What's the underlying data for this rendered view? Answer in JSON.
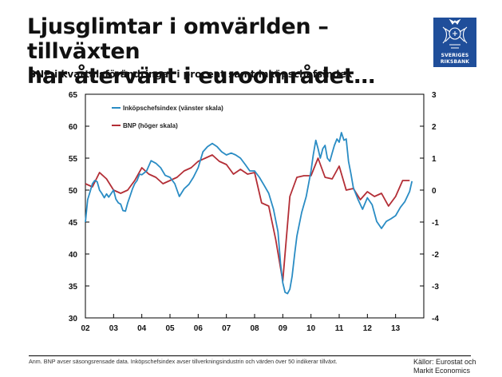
{
  "header": {
    "title_line1": "Ljusglimtar i omvärlden – tillväxten",
    "title_line2": "har återvänt i euroområdet…",
    "subtitle": "BNP i kvartalsförändringar i procent samt inköpschefsindex"
  },
  "logo": {
    "icon": "riksbank-crest-icon",
    "line1": "SVERIGES",
    "line2": "RIKSBANK",
    "color": "#1f4e9a"
  },
  "footer": {
    "note": "Anm. BNP avser säsongsrensade data. Inköpschefsindex avser tillverkningsindustrin och värden över 50 indikerar tillväxt.",
    "source_line1": "Källor: Eurostat och",
    "source_line2": "Markit Economics"
  },
  "chart_data": {
    "type": "line",
    "xlabel": "",
    "ylabel": "",
    "x_ticks": [
      "02",
      "03",
      "04",
      "05",
      "06",
      "07",
      "08",
      "09",
      "10",
      "11",
      "12",
      "13"
    ],
    "x_range": [
      2002.0,
      2014.0
    ],
    "y_left": {
      "min": 30,
      "max": 65,
      "ticks": [
        30,
        35,
        40,
        45,
        50,
        55,
        60,
        65
      ]
    },
    "y_right": {
      "min": -4,
      "max": 3,
      "ticks": [
        -4,
        -3,
        -2,
        -1,
        0,
        1,
        2,
        3
      ]
    },
    "grid": false,
    "legend_position": "top-left",
    "series": [
      {
        "name": "Inköpschefsindex (vänster skala)",
        "axis": "left",
        "color": "#2a8cc4",
        "x": [
          2002.0,
          2002.08,
          2002.17,
          2002.25,
          2002.33,
          2002.42,
          2002.5,
          2002.58,
          2002.67,
          2002.75,
          2002.83,
          2002.92,
          2003.0,
          2003.08,
          2003.17,
          2003.25,
          2003.33,
          2003.42,
          2003.5,
          2003.58,
          2003.67,
          2003.75,
          2003.83,
          2003.92,
          2004.0,
          2004.17,
          2004.33,
          2004.5,
          2004.67,
          2004.83,
          2005.0,
          2005.17,
          2005.33,
          2005.5,
          2005.67,
          2005.83,
          2006.0,
          2006.17,
          2006.33,
          2006.5,
          2006.67,
          2006.83,
          2007.0,
          2007.17,
          2007.33,
          2007.5,
          2007.67,
          2007.83,
          2008.0,
          2008.17,
          2008.33,
          2008.5,
          2008.67,
          2008.83,
          2008.92,
          2009.0,
          2009.08,
          2009.17,
          2009.25,
          2009.33,
          2009.42,
          2009.5,
          2009.67,
          2009.83,
          2010.0,
          2010.08,
          2010.17,
          2010.25,
          2010.33,
          2010.42,
          2010.5,
          2010.58,
          2010.67,
          2010.75,
          2010.83,
          2010.92,
          2011.0,
          2011.08,
          2011.17,
          2011.25,
          2011.33,
          2011.42,
          2011.5,
          2011.67,
          2011.83,
          2012.0,
          2012.17,
          2012.33,
          2012.5,
          2012.67,
          2012.83,
          2013.0,
          2013.17,
          2013.33,
          2013.5,
          2013.58
        ],
        "values": [
          45.0,
          48.5,
          49.8,
          51.0,
          51.5,
          51.3,
          50.0,
          49.5,
          48.8,
          49.4,
          48.9,
          49.5,
          50.0,
          48.6,
          48.0,
          47.8,
          46.8,
          46.7,
          48.0,
          49.0,
          50.2,
          51.0,
          51.5,
          52.5,
          52.4,
          53.0,
          54.6,
          54.2,
          53.5,
          52.3,
          52.0,
          51.0,
          49.0,
          50.2,
          50.9,
          52.0,
          53.5,
          56.0,
          56.8,
          57.3,
          56.8,
          56.0,
          55.5,
          55.8,
          55.5,
          55.0,
          54.0,
          53.0,
          53.0,
          52.0,
          50.8,
          49.5,
          47.0,
          43.5,
          38.5,
          35.5,
          34.0,
          33.8,
          34.5,
          36.5,
          40.0,
          42.8,
          46.5,
          49.0,
          53.0,
          55.5,
          57.8,
          56.5,
          55.0,
          56.5,
          57.0,
          55.0,
          54.5,
          55.8,
          57.0,
          58.0,
          57.5,
          59.0,
          57.8,
          58.0,
          54.5,
          52.5,
          50.4,
          48.5,
          47.0,
          48.8,
          47.7,
          45.1,
          44.0,
          45.1,
          45.5,
          46.0,
          47.3,
          48.2,
          49.8,
          51.4
        ],
        "thickness": 1.8
      },
      {
        "name": "BNP (höger skala)",
        "axis": "right",
        "color": "#b32e36",
        "x": [
          2002.0,
          2002.25,
          2002.5,
          2002.75,
          2003.0,
          2003.25,
          2003.5,
          2003.75,
          2004.0,
          2004.25,
          2004.5,
          2004.75,
          2005.0,
          2005.25,
          2005.5,
          2005.75,
          2006.0,
          2006.25,
          2006.5,
          2006.75,
          2007.0,
          2007.25,
          2007.5,
          2007.75,
          2008.0,
          2008.25,
          2008.5,
          2008.75,
          2009.0,
          2009.25,
          2009.5,
          2009.75,
          2010.0,
          2010.25,
          2010.5,
          2010.75,
          2011.0,
          2011.25,
          2011.5,
          2011.75,
          2012.0,
          2012.25,
          2012.5,
          2012.75,
          2013.0,
          2013.25,
          2013.5
        ],
        "values": [
          0.2,
          0.1,
          0.55,
          0.35,
          0.0,
          -0.1,
          0.0,
          0.3,
          0.7,
          0.5,
          0.4,
          0.2,
          0.3,
          0.4,
          0.6,
          0.7,
          0.9,
          1.0,
          1.1,
          0.9,
          0.8,
          0.5,
          0.65,
          0.5,
          0.55,
          -0.4,
          -0.5,
          -1.55,
          -2.85,
          -0.2,
          0.4,
          0.45,
          0.45,
          1.0,
          0.4,
          0.35,
          0.75,
          0.0,
          0.05,
          -0.3,
          -0.05,
          -0.2,
          -0.1,
          -0.5,
          -0.2,
          0.3,
          0.3
        ],
        "thickness": 1.8
      }
    ]
  }
}
